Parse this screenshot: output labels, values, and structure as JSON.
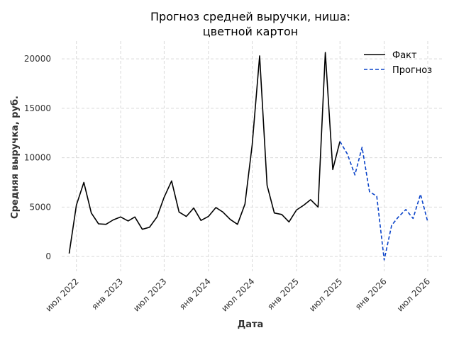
{
  "chart_data": {
    "type": "line",
    "title_lines": [
      "Прогноз средней выручки, ниша:",
      "цветной картон"
    ],
    "xlabel": "Дата",
    "ylabel": "Средняя выручка, руб.",
    "ylim": [
      -1500,
      21800
    ],
    "xlim": [
      "2022-05-01",
      "2026-09-01"
    ],
    "y_ticks": [
      0,
      5000,
      10000,
      15000,
      20000
    ],
    "x_ticks": [
      {
        "date": "2022-07-01",
        "label": "июл 2022"
      },
      {
        "date": "2023-01-01",
        "label": "янв 2023"
      },
      {
        "date": "2023-07-01",
        "label": "июл 2023"
      },
      {
        "date": "2024-01-01",
        "label": "янв 2024"
      },
      {
        "date": "2024-07-01",
        "label": "июл 2024"
      },
      {
        "date": "2025-01-01",
        "label": "янв 2025"
      },
      {
        "date": "2025-07-01",
        "label": "июл 2025"
      },
      {
        "date": "2026-01-01",
        "label": "янв 2026"
      },
      {
        "date": "2026-07-01",
        "label": "июл 2026"
      }
    ],
    "grid": true,
    "legend_position": "top-right",
    "series": [
      {
        "name": "Факт",
        "color": "#000000",
        "dash": "solid",
        "points": [
          [
            "2022-06-01",
            300
          ],
          [
            "2022-07-01",
            5200
          ],
          [
            "2022-08-01",
            7500
          ],
          [
            "2022-09-01",
            4400
          ],
          [
            "2022-10-01",
            3300
          ],
          [
            "2022-11-01",
            3250
          ],
          [
            "2022-12-01",
            3700
          ],
          [
            "2023-01-01",
            4000
          ],
          [
            "2023-02-01",
            3600
          ],
          [
            "2023-03-01",
            4000
          ],
          [
            "2023-04-01",
            2750
          ],
          [
            "2023-05-01",
            2950
          ],
          [
            "2023-06-01",
            4000
          ],
          [
            "2023-07-01",
            6000
          ],
          [
            "2023-08-01",
            7650
          ],
          [
            "2023-09-01",
            4500
          ],
          [
            "2023-10-01",
            4050
          ],
          [
            "2023-11-01",
            4900
          ],
          [
            "2023-12-01",
            3650
          ],
          [
            "2024-01-01",
            4050
          ],
          [
            "2024-02-01",
            4950
          ],
          [
            "2024-03-01",
            4500
          ],
          [
            "2024-04-01",
            3750
          ],
          [
            "2024-05-01",
            3250
          ],
          [
            "2024-06-01",
            5300
          ],
          [
            "2024-07-01",
            11300
          ],
          [
            "2024-08-01",
            20300
          ],
          [
            "2024-09-01",
            7200
          ],
          [
            "2024-10-01",
            4400
          ],
          [
            "2024-11-01",
            4250
          ],
          [
            "2024-12-01",
            3500
          ],
          [
            "2025-01-01",
            4700
          ],
          [
            "2025-02-01",
            5200
          ],
          [
            "2025-03-01",
            5750
          ],
          [
            "2025-04-01",
            5000
          ],
          [
            "2025-05-01",
            20650
          ],
          [
            "2025-06-01",
            8800
          ],
          [
            "2025-07-01",
            11650
          ]
        ]
      },
      {
        "name": "Прогноз",
        "color": "#0a43c9",
        "dash": "dashed",
        "points": [
          [
            "2025-07-01",
            11650
          ],
          [
            "2025-08-01",
            10350
          ],
          [
            "2025-09-01",
            8250
          ],
          [
            "2025-10-01",
            11050
          ],
          [
            "2025-11-01",
            6550
          ],
          [
            "2025-12-01",
            6100
          ],
          [
            "2026-01-01",
            -350
          ],
          [
            "2026-02-01",
            3150
          ],
          [
            "2026-03-01",
            4000
          ],
          [
            "2026-04-01",
            4750
          ],
          [
            "2026-05-01",
            3850
          ],
          [
            "2026-06-01",
            6300
          ],
          [
            "2026-07-01",
            3500
          ]
        ]
      }
    ]
  }
}
